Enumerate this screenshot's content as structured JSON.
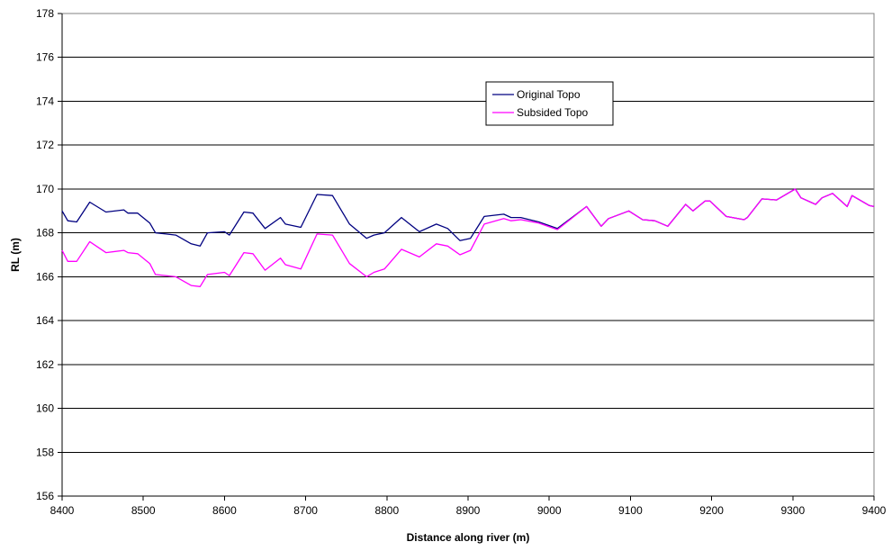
{
  "chart_data": {
    "type": "line",
    "title": "",
    "xlabel": "Distance along river (m)",
    "ylabel": "RL (m)",
    "xlim": [
      8400,
      9400
    ],
    "ylim": [
      156,
      178
    ],
    "x_ticks": [
      8400,
      8500,
      8600,
      8700,
      8800,
      8900,
      9000,
      9100,
      9200,
      9300,
      9400
    ],
    "y_ticks": [
      156,
      158,
      160,
      162,
      164,
      166,
      168,
      170,
      172,
      174,
      176,
      178
    ],
    "grid": "horizontal major gridlines",
    "legend_position": "upper-center",
    "series": [
      {
        "name": "Original Topo",
        "color": "#000080",
        "points": [
          [
            8400,
            169.0
          ],
          [
            8407,
            168.55
          ],
          [
            8418,
            168.5
          ],
          [
            8434,
            169.4
          ],
          [
            8454,
            168.95
          ],
          [
            8476,
            169.05
          ],
          [
            8481,
            168.9
          ],
          [
            8493,
            168.9
          ],
          [
            8508,
            168.45
          ],
          [
            8515,
            168.0
          ],
          [
            8528,
            167.95
          ],
          [
            8540,
            167.9
          ],
          [
            8559,
            167.5
          ],
          [
            8570,
            167.4
          ],
          [
            8579,
            168.0
          ],
          [
            8600,
            168.05
          ],
          [
            8606,
            167.9
          ],
          [
            8624,
            168.95
          ],
          [
            8635,
            168.9
          ],
          [
            8650,
            168.2
          ],
          [
            8669,
            168.7
          ],
          [
            8675,
            168.4
          ],
          [
            8694,
            168.25
          ],
          [
            8714,
            169.75
          ],
          [
            8733,
            169.7
          ],
          [
            8754,
            168.4
          ],
          [
            8775,
            167.75
          ],
          [
            8784,
            167.9
          ],
          [
            8797,
            168.0
          ],
          [
            8818,
            168.7
          ],
          [
            8840,
            168.05
          ],
          [
            8861,
            168.4
          ],
          [
            8875,
            168.2
          ],
          [
            8890,
            167.65
          ],
          [
            8903,
            167.75
          ],
          [
            8920,
            168.75
          ],
          [
            8944,
            168.85
          ],
          [
            8953,
            168.7
          ],
          [
            8965,
            168.7
          ],
          [
            8987,
            168.5
          ],
          [
            9010,
            168.2
          ],
          [
            9046,
            169.2
          ],
          [
            9064,
            168.3
          ],
          [
            9073,
            168.65
          ],
          [
            9098,
            169.0
          ],
          [
            9115,
            168.6
          ],
          [
            9130,
            168.55
          ],
          [
            9146,
            168.3
          ],
          [
            9168,
            169.3
          ],
          [
            9177,
            169.0
          ],
          [
            9192,
            169.45
          ],
          [
            9198,
            169.45
          ],
          [
            9218,
            168.75
          ],
          [
            9240,
            168.6
          ],
          [
            9244,
            168.7
          ],
          [
            9262,
            169.55
          ],
          [
            9280,
            169.5
          ],
          [
            9303,
            170.0
          ],
          [
            9310,
            169.6
          ],
          [
            9328,
            169.3
          ],
          [
            9336,
            169.6
          ],
          [
            9349,
            169.8
          ],
          [
            9367,
            169.2
          ],
          [
            9373,
            169.7
          ],
          [
            9394,
            169.25
          ],
          [
            9400,
            169.2
          ]
        ]
      },
      {
        "name": "Subsided Topo",
        "color": "#ff00ff",
        "points": [
          [
            8400,
            167.2
          ],
          [
            8407,
            166.7
          ],
          [
            8418,
            166.7
          ],
          [
            8434,
            167.6
          ],
          [
            8454,
            167.1
          ],
          [
            8476,
            167.2
          ],
          [
            8481,
            167.1
          ],
          [
            8493,
            167.05
          ],
          [
            8508,
            166.6
          ],
          [
            8515,
            166.1
          ],
          [
            8540,
            166.0
          ],
          [
            8559,
            165.6
          ],
          [
            8570,
            165.55
          ],
          [
            8579,
            166.1
          ],
          [
            8600,
            166.2
          ],
          [
            8606,
            166.05
          ],
          [
            8624,
            167.1
          ],
          [
            8635,
            167.05
          ],
          [
            8650,
            166.3
          ],
          [
            8669,
            166.85
          ],
          [
            8675,
            166.55
          ],
          [
            8694,
            166.35
          ],
          [
            8714,
            167.95
          ],
          [
            8733,
            167.9
          ],
          [
            8754,
            166.6
          ],
          [
            8775,
            166.0
          ],
          [
            8784,
            166.2
          ],
          [
            8797,
            166.35
          ],
          [
            8818,
            167.25
          ],
          [
            8840,
            166.9
          ],
          [
            8861,
            167.5
          ],
          [
            8875,
            167.4
          ],
          [
            8890,
            167.0
          ],
          [
            8903,
            167.2
          ],
          [
            8920,
            168.4
          ],
          [
            8944,
            168.65
          ],
          [
            8953,
            168.55
          ],
          [
            8965,
            168.6
          ],
          [
            8987,
            168.45
          ],
          [
            9010,
            168.15
          ],
          [
            9046,
            169.2
          ],
          [
            9064,
            168.3
          ],
          [
            9073,
            168.65
          ],
          [
            9098,
            169.0
          ],
          [
            9115,
            168.6
          ],
          [
            9130,
            168.55
          ],
          [
            9146,
            168.3
          ],
          [
            9168,
            169.3
          ],
          [
            9177,
            169.0
          ],
          [
            9192,
            169.45
          ],
          [
            9198,
            169.45
          ],
          [
            9218,
            168.75
          ],
          [
            9240,
            168.6
          ],
          [
            9244,
            168.7
          ],
          [
            9262,
            169.55
          ],
          [
            9280,
            169.5
          ],
          [
            9303,
            170.0
          ],
          [
            9310,
            169.6
          ],
          [
            9328,
            169.3
          ],
          [
            9336,
            169.6
          ],
          [
            9349,
            169.8
          ],
          [
            9367,
            169.2
          ],
          [
            9373,
            169.7
          ],
          [
            9394,
            169.25
          ],
          [
            9400,
            169.2
          ]
        ]
      }
    ]
  }
}
